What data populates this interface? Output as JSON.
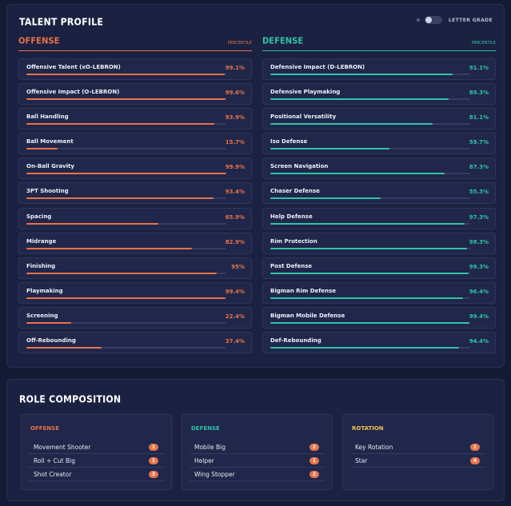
{
  "talent_profile": {
    "title": "TALENT PROFILE",
    "toggle_label": "LETTER GRADE",
    "toggle_on": false,
    "offense": {
      "heading": "OFFENSE",
      "subheading": "PERCENTILE",
      "color": "#e8734a",
      "items": [
        {
          "label": "Offensive Talent (xO-LEBRON)",
          "value": "99.1%",
          "pct": 99.1
        },
        {
          "label": "Offensive Impact (O-LEBRON)",
          "value": "99.6%",
          "pct": 99.6
        },
        {
          "label": "Ball Handling",
          "value": "93.9%",
          "pct": 93.9
        },
        {
          "label": "Ball Movement",
          "value": "15.7%",
          "pct": 15.7
        },
        {
          "label": "On-Ball Gravity",
          "value": "99.9%",
          "pct": 99.9
        },
        {
          "label": "3PT Shooting",
          "value": "93.4%",
          "pct": 93.4
        },
        {
          "label": "Spacing",
          "value": "65.9%",
          "pct": 65.9
        },
        {
          "label": "Midrange",
          "value": "82.9%",
          "pct": 82.9
        },
        {
          "label": "Finishing",
          "value": "95%",
          "pct": 95
        },
        {
          "label": "Playmaking",
          "value": "99.4%",
          "pct": 99.4
        },
        {
          "label": "Screening",
          "value": "22.4%",
          "pct": 22.4
        },
        {
          "label": "Off-Rebounding",
          "value": "37.4%",
          "pct": 37.4
        }
      ]
    },
    "defense": {
      "heading": "DEFENSE",
      "subheading": "PERCENTILE",
      "color": "#31c4a6",
      "items": [
        {
          "label": "Defensive Impact (D-LEBRON)",
          "value": "91.1%",
          "pct": 91.1
        },
        {
          "label": "Defensive Playmaking",
          "value": "89.3%",
          "pct": 89.3
        },
        {
          "label": "Positional Versatility",
          "value": "81.1%",
          "pct": 81.1
        },
        {
          "label": "Iso Defense",
          "value": "59.7%",
          "pct": 59.7
        },
        {
          "label": "Screen Navigation",
          "value": "87.3%",
          "pct": 87.3
        },
        {
          "label": "Chaser Defense",
          "value": "55.3%",
          "pct": 55.3
        },
        {
          "label": "Help Defense",
          "value": "97.3%",
          "pct": 97.3
        },
        {
          "label": "Rim Protection",
          "value": "98.3%",
          "pct": 98.3
        },
        {
          "label": "Post Defense",
          "value": "99.3%",
          "pct": 99.3
        },
        {
          "label": "Bigman Rim Defense",
          "value": "96.4%",
          "pct": 96.4
        },
        {
          "label": "Bigman Mobile Defense",
          "value": "99.4%",
          "pct": 99.4
        },
        {
          "label": "Def-Rebounding",
          "value": "94.4%",
          "pct": 94.4
        }
      ]
    }
  },
  "role_composition": {
    "title": "ROLE COMPOSITION",
    "groups": [
      {
        "heading": "OFFENSE",
        "color": "#e8734a",
        "items": [
          {
            "label": "Movement Shooter",
            "count": "1"
          },
          {
            "label": "Roll + Cut Big",
            "count": "1"
          },
          {
            "label": "Shot Creator",
            "count": "3"
          }
        ]
      },
      {
        "heading": "DEFENSE",
        "color": "#31c4a6",
        "items": [
          {
            "label": "Mobile Big",
            "count": "2"
          },
          {
            "label": "Helper",
            "count": "1"
          },
          {
            "label": "Wing Stopper",
            "count": "2"
          }
        ]
      },
      {
        "heading": "ROTATION",
        "color": "#f2c14e",
        "items": [
          {
            "label": "Key Rotation",
            "count": "1"
          },
          {
            "label": "Star",
            "count": "4"
          }
        ]
      }
    ]
  }
}
